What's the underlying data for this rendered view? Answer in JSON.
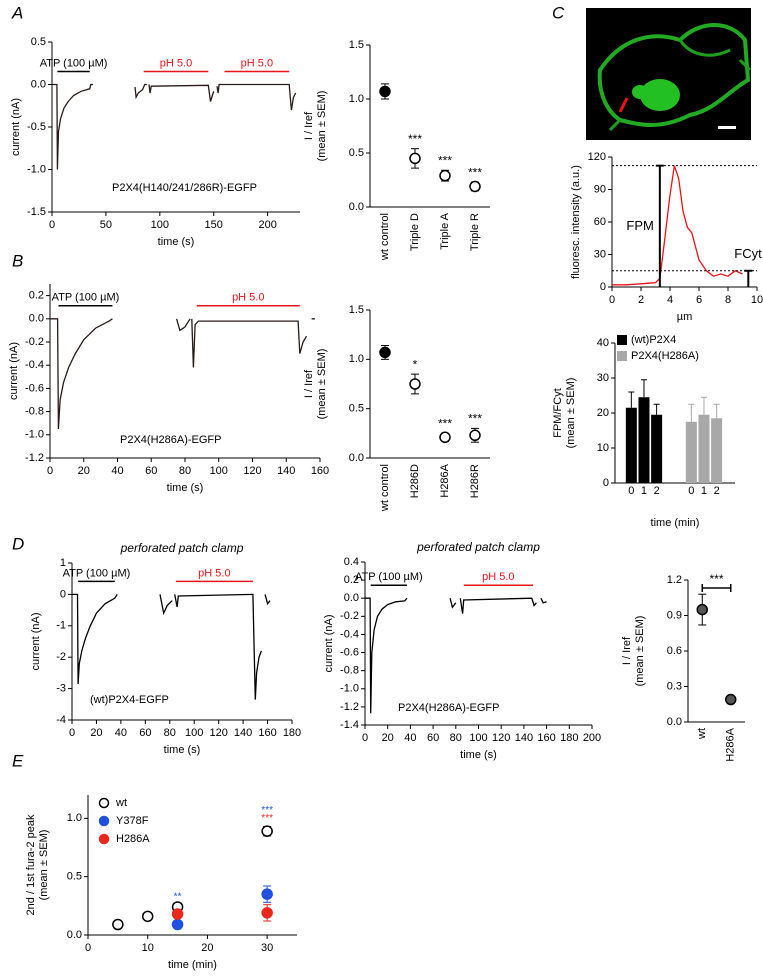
{
  "chart_data": [
    {
      "type": "line",
      "panel": "A",
      "x": [
        0,
        4.5,
        5,
        6,
        8,
        11,
        15,
        20,
        27,
        35,
        36,
        38,
        57,
        77,
        78,
        80,
        84,
        86,
        88,
        89,
        90,
        91,
        92,
        145,
        147,
        150,
        151,
        153,
        154,
        155,
        220,
        222,
        224,
        226
      ],
      "values": [
        0,
        0,
        -1.0,
        -0.55,
        -0.4,
        -0.28,
        -0.2,
        -0.13,
        -0.08,
        -0.05,
        0,
        0,
        null,
        -0.03,
        -0.15,
        -0.1,
        -0.06,
        0,
        0,
        null,
        0,
        -0.1,
        -0.02,
        -0.01,
        -0.2,
        -0.08,
        null,
        -0.02,
        -0.1,
        0,
        0,
        -0.3,
        -0.15,
        -0.1
      ],
      "color": "#2a1a1a",
      "xlim": [
        0,
        230
      ],
      "xticks": [
        0,
        50,
        100,
        150,
        200
      ],
      "ylim": [
        -1.5,
        0.5
      ],
      "yticks": [
        0.5,
        {
          "value": 0,
          "label": "0.0"
        },
        -0.5,
        {
          "value": -1,
          "label": "-1.0"
        },
        -1.5
      ],
      "xlabel": "time (s)",
      "ylabel": "current (nA)",
      "label": "P2X4(H140/241/286R)-EGFP",
      "stimuli": [
        {
          "label": "ATP (100 µM)",
          "start": 5,
          "end": 35,
          "color": "#000000"
        },
        {
          "label": "pH 5.0",
          "start": 85,
          "end": 145,
          "color": "#e8141c"
        },
        {
          "label": "pH 5.0",
          "start": 160,
          "end": 220,
          "color": "#e8141c"
        }
      ]
    },
    {
      "type": "dot",
      "categories": [
        "wt control",
        "Triple D",
        "Triple A",
        "Triple R"
      ],
      "values": [
        1.07,
        0.45,
        0.29,
        0.19
      ],
      "errors": [
        0.07,
        0.09,
        0.05,
        0.04
      ],
      "marker_fills": [
        "#000000",
        "#ffffff",
        "#ffffff",
        "#ffffff"
      ],
      "annotations": [
        null,
        "***",
        "***",
        "***"
      ],
      "ylim": [
        0,
        1.5
      ],
      "yticks": [
        {
          "value": 0,
          "label": "0.0"
        },
        0.5,
        {
          "value": 1,
          "label": "1.0"
        },
        1.5
      ],
      "ylabel": [
        "I / Iref",
        "(mean ± SEM)"
      ]
    },
    {
      "type": "line",
      "panel": "B",
      "x": [
        0,
        4.5,
        5,
        6,
        8,
        11,
        15,
        20,
        27,
        35,
        37,
        55,
        75,
        77,
        80,
        83,
        83.5,
        84,
        85,
        86,
        88,
        147,
        148,
        150,
        152,
        153,
        155,
        157
      ],
      "values": [
        0,
        0,
        -0.95,
        -0.7,
        -0.55,
        -0.42,
        -0.3,
        -0.18,
        -0.08,
        -0.02,
        0,
        null,
        0,
        -0.1,
        -0.07,
        0,
        null,
        0,
        -0.42,
        -0.05,
        -0.02,
        -0.02,
        -0.3,
        -0.2,
        -0.15,
        null,
        0,
        0
      ],
      "color": "#2a1a1a",
      "xlim": [
        0,
        160
      ],
      "xticks": [
        0,
        20,
        40,
        60,
        80,
        100,
        120,
        140,
        160
      ],
      "ylim": [
        -1.2,
        0.3
      ],
      "yticks": [
        0.2,
        {
          "value": 0,
          "label": "0.0"
        },
        -0.2,
        -0.4,
        -0.6,
        -0.8,
        {
          "value": -1,
          "label": "-1.0"
        },
        -1.2
      ],
      "xlabel": "time (s)",
      "ylabel": "current (nA)",
      "label": "P2X4(H286A)-EGFP",
      "stimuli": [
        {
          "label": "ATP (100 µM)",
          "start": 5,
          "end": 37,
          "color": "#000000"
        },
        {
          "label": "pH 5.0",
          "start": 87,
          "end": 148,
          "color": "#e8141c"
        }
      ]
    },
    {
      "type": "dot",
      "categories": [
        "wt control",
        "H286D",
        "H286A",
        "H286R"
      ],
      "values": [
        1.07,
        0.75,
        0.21,
        0.23
      ],
      "errors": [
        0.07,
        0.1,
        0.04,
        0.07
      ],
      "marker_fills": [
        "#000000",
        "#ffffff",
        "#ffffff",
        "#ffffff"
      ],
      "annotations": [
        null,
        "*",
        "***",
        "***"
      ],
      "ylim": [
        0,
        1.5
      ],
      "yticks": [
        {
          "value": 0,
          "label": "0.0"
        },
        0.5,
        {
          "value": 1,
          "label": "1.0"
        },
        1.5
      ],
      "ylabel": [
        "I / Iref",
        "(mean ± SEM)"
      ]
    },
    {
      "type": "line",
      "panel": "C",
      "x": [
        0,
        1,
        2,
        3,
        3.3,
        3.6,
        4,
        4.3,
        4.6,
        4.9,
        5.2,
        5.5,
        6,
        6.5,
        7,
        7.5,
        8,
        8.5,
        9
      ],
      "values": [
        2,
        2,
        3,
        4,
        8,
        40,
        85,
        112,
        100,
        70,
        55,
        50,
        25,
        15,
        10,
        12,
        10,
        15,
        12
      ],
      "color": "#e8141c",
      "xlim": [
        0,
        10
      ],
      "xticks": [
        0,
        2,
        4,
        6,
        8,
        10
      ],
      "ylim": [
        0,
        120
      ],
      "yticks": [
        0,
        30,
        60,
        90,
        120
      ],
      "xlabel": "µm",
      "ylabel": "fluoresc. intensity (a.u.)",
      "markers": [
        {
          "label": "FPM",
          "x": 3.3,
          "value": 112
        },
        {
          "label": "FCyt",
          "x": 9.4,
          "value": 15
        }
      ]
    },
    {
      "type": "bar",
      "categories": [
        "0",
        "1",
        "2"
      ],
      "series": [
        {
          "name": "(wt)P2X4",
          "color": "#000000",
          "values": [
            21.5,
            24.5,
            19.5
          ],
          "errors": [
            4.5,
            5,
            3
          ]
        },
        {
          "name": "P2X4(H286A)",
          "color": "#a8a8a8",
          "values": [
            17.5,
            19.5,
            18.5
          ],
          "errors": [
            5,
            5,
            4
          ]
        }
      ],
      "ylim": [
        0,
        40
      ],
      "yticks": [
        0,
        10,
        20,
        30,
        40
      ],
      "xlabel": "time (min)",
      "ylabel": [
        "FPM/FCyt",
        "(mean ± SEM)"
      ]
    },
    {
      "type": "line",
      "panel": "D",
      "title": "perforated patch clamp",
      "x": [
        0,
        4.5,
        5,
        6,
        8,
        11,
        15,
        20,
        27,
        35,
        37,
        55,
        72,
        75,
        78,
        82,
        83,
        84,
        86,
        87,
        148,
        150,
        151,
        153,
        155,
        156.5,
        158,
        160,
        162
      ],
      "values": [
        0,
        0,
        -2.85,
        -2.2,
        -1.8,
        -1.4,
        -1.0,
        -0.6,
        -0.3,
        -0.12,
        0,
        null,
        0,
        -0.6,
        -0.35,
        -0.2,
        null,
        0,
        -0.4,
        -0.05,
        0,
        -3.35,
        -2.5,
        -2.0,
        -1.8,
        null,
        0,
        -0.3,
        -0.2
      ],
      "color": "#000000",
      "xlim": [
        0,
        180
      ],
      "xticks": [
        0,
        20,
        40,
        60,
        80,
        100,
        120,
        140,
        160,
        180
      ],
      "ylim": [
        -4,
        1
      ],
      "yticks": [
        1,
        0,
        -1,
        -2,
        -3,
        -4
      ],
      "xlabel": "time (s)",
      "ylabel": "current (nA)",
      "label": "(wt)P2X4-EGFP",
      "stimuli": [
        {
          "label": "ATP (100 µM)",
          "start": 5,
          "end": 35,
          "color": "#000000"
        },
        {
          "label": "pH 5.0",
          "start": 85,
          "end": 148,
          "color": "#e8141c"
        }
      ]
    },
    {
      "type": "line",
      "title": "perforated patch clamp",
      "x": [
        0,
        4.5,
        5,
        6,
        8,
        11,
        15,
        20,
        27,
        35,
        37,
        55,
        75,
        77,
        80,
        82,
        84,
        86,
        87,
        147,
        149,
        151,
        153,
        155,
        157,
        160
      ],
      "values": [
        0,
        0,
        -1.27,
        -0.6,
        -0.35,
        -0.2,
        -0.12,
        -0.07,
        -0.04,
        -0.03,
        0,
        null,
        0,
        -0.1,
        -0.05,
        null,
        0,
        -0.17,
        -0.02,
        0,
        -0.08,
        -0.05,
        null,
        0,
        -0.05,
        -0.04
      ],
      "color": "#000000",
      "xlim": [
        0,
        200
      ],
      "xticks": [
        0,
        20,
        40,
        60,
        80,
        100,
        120,
        140,
        160,
        180,
        200
      ],
      "ylim": [
        -1.4,
        0.4
      ],
      "yticks": [
        0.4,
        0.2,
        {
          "value": 0,
          "label": "0.0"
        },
        -0.2,
        -0.4,
        -0.6,
        -0.8,
        {
          "value": -1,
          "label": "-1.0"
        },
        -1.2,
        -1.4
      ],
      "xlabel": "time (s)",
      "ylabel": "current (nA)",
      "label": "P2X4(H286A)-EGFP",
      "stimuli": [
        {
          "label": "ATP (100 µM)",
          "start": 5,
          "end": 37,
          "color": "#000000"
        },
        {
          "label": "pH 5.0",
          "start": 87,
          "end": 148,
          "color": "#e8141c"
        }
      ]
    },
    {
      "type": "dot",
      "categories": [
        "wt",
        "H286A"
      ],
      "values": [
        0.95,
        0.19
      ],
      "errors": [
        0.13,
        0.01
      ],
      "marker_fills": [
        "#555555",
        "#555555"
      ],
      "bracket_label": "***",
      "ylim": [
        0,
        1.2
      ],
      "yticks": [
        {
          "value": 0,
          "label": "0.0"
        },
        0.3,
        0.6,
        0.9,
        1.2
      ],
      "ylabel": [
        "I / Iref",
        "(mean ± SEM)"
      ]
    },
    {
      "type": "scatter",
      "panel": "E",
      "xlim": [
        0,
        35
      ],
      "xticks": [
        0,
        10,
        20,
        30
      ],
      "ylim": [
        0,
        1.2
      ],
      "yticks": [
        {
          "value": 0,
          "label": "0.0"
        },
        0.5,
        {
          "value": 1,
          "label": "1.0"
        }
      ],
      "xlabel": "time (min)",
      "ylabel": [
        "2nd / 1st fura-2 peak",
        "(mean ± SEM)"
      ],
      "series": [
        {
          "name": "wt",
          "color": "#000000",
          "filled": false,
          "x": [
            5,
            10,
            15,
            30
          ],
          "values": [
            0.09,
            0.16,
            0.24,
            0.89
          ],
          "errors": [
            0.01,
            0.01,
            0.02,
            0.04
          ]
        },
        {
          "name": "Y378F",
          "color": "#1f4fe0",
          "filled": true,
          "x": [
            15,
            30
          ],
          "values": [
            0.09,
            0.35
          ],
          "errors": [
            0.01,
            0.07
          ],
          "annotations": [
            "**",
            "***"
          ]
        },
        {
          "name": "H286A",
          "color": "#e8281c",
          "filled": true,
          "x": [
            15,
            30
          ],
          "values": [
            0.18,
            0.19
          ],
          "errors": [
            0.02,
            0.07
          ],
          "annotations": [
            null,
            "***"
          ]
        }
      ]
    }
  ]
}
